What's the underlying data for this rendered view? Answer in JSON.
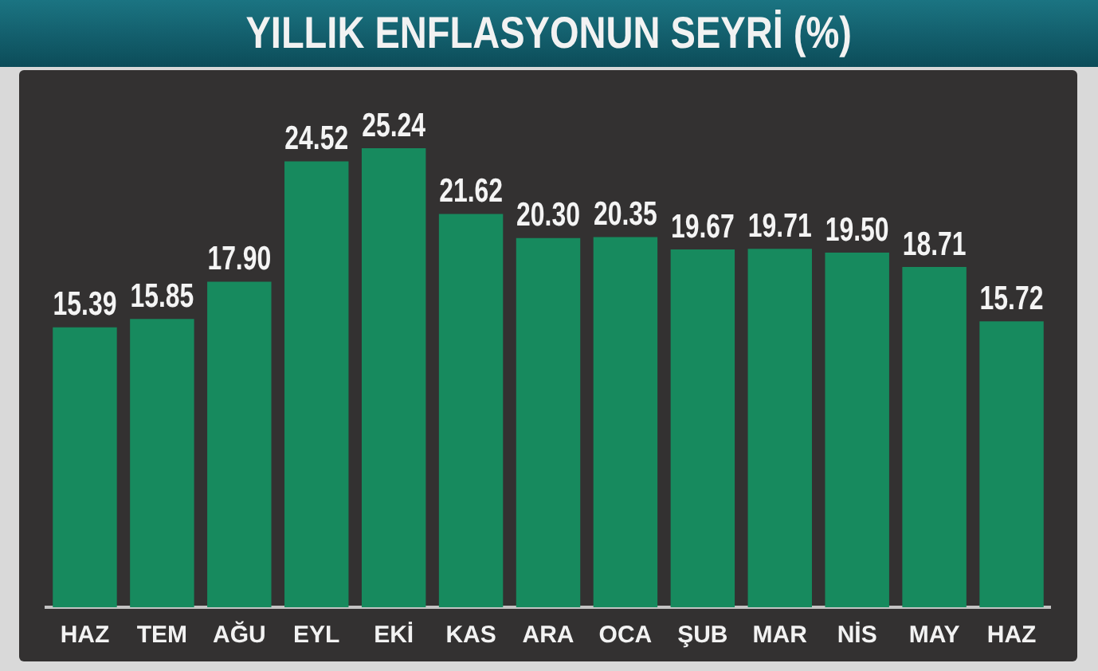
{
  "chart_data": {
    "type": "bar",
    "title": "YILLIK ENFLASYONUN SEYRİ (%)",
    "categories": [
      "HAZ",
      "TEM",
      "AĞU",
      "EYL",
      "EKİ",
      "KAS",
      "ARA",
      "OCA",
      "ŞUB",
      "MAR",
      "NİS",
      "MAY",
      "HAZ"
    ],
    "values": [
      15.39,
      15.85,
      17.9,
      24.52,
      25.24,
      21.62,
      20.3,
      20.35,
      19.67,
      19.71,
      19.5,
      18.71,
      15.72
    ],
    "value_labels": [
      "15.39",
      "15.85",
      "17.90",
      "24.52",
      "25.24",
      "21.62",
      "20.30",
      "20.35",
      "19.67",
      "19.71",
      "19.50",
      "18.71",
      "15.72"
    ],
    "color": "#178a5e",
    "grid": false,
    "legend": false,
    "tick_labels": "x"
  }
}
